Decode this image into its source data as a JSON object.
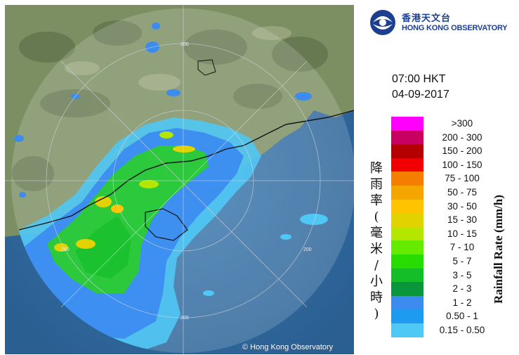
{
  "header": {
    "logo_zh": "香港天文台",
    "logo_en": "HONG KONG OBSERVATORY",
    "time": "07:00 HKT",
    "date": "04-09-2017"
  },
  "map": {
    "copyright": "© Hong Kong Observatory",
    "range_labels": [
      "200",
      "200",
      "200",
      "200",
      "200"
    ],
    "colors": {
      "sea": "#2f6fa8",
      "land": "#7c8f63",
      "coast": "#111111"
    }
  },
  "legend": {
    "title_zh": "降雨率(毫米/小時)",
    "title_en": "Rainfall Rate (mm/h)",
    "items": [
      {
        "label": ">300",
        "color": "#ff00ff"
      },
      {
        "label": "200 - 300",
        "color": "#c8005f"
      },
      {
        "label": "150 - 200",
        "color": "#b40000"
      },
      {
        "label": "100 - 150",
        "color": "#f00000"
      },
      {
        "label": "75 - 100",
        "color": "#f57d00"
      },
      {
        "label": "50 - 75",
        "color": "#f5a500"
      },
      {
        "label": "30 - 50",
        "color": "#ffc300"
      },
      {
        "label": "15 - 30",
        "color": "#e1d200"
      },
      {
        "label": "10 - 15",
        "color": "#b4e600"
      },
      {
        "label": "7 - 10",
        "color": "#64eb00"
      },
      {
        "label": "5 - 7",
        "color": "#28dc00"
      },
      {
        "label": "3 - 5",
        "color": "#14be28"
      },
      {
        "label": "2 - 3",
        "color": "#0a963c"
      },
      {
        "label": "1 - 2",
        "color": "#3c8cf0"
      },
      {
        "label": "0.50 - 1",
        "color": "#1e9bf0"
      },
      {
        "label": "0.15 - 0.50",
        "color": "#50c8f5"
      }
    ]
  }
}
